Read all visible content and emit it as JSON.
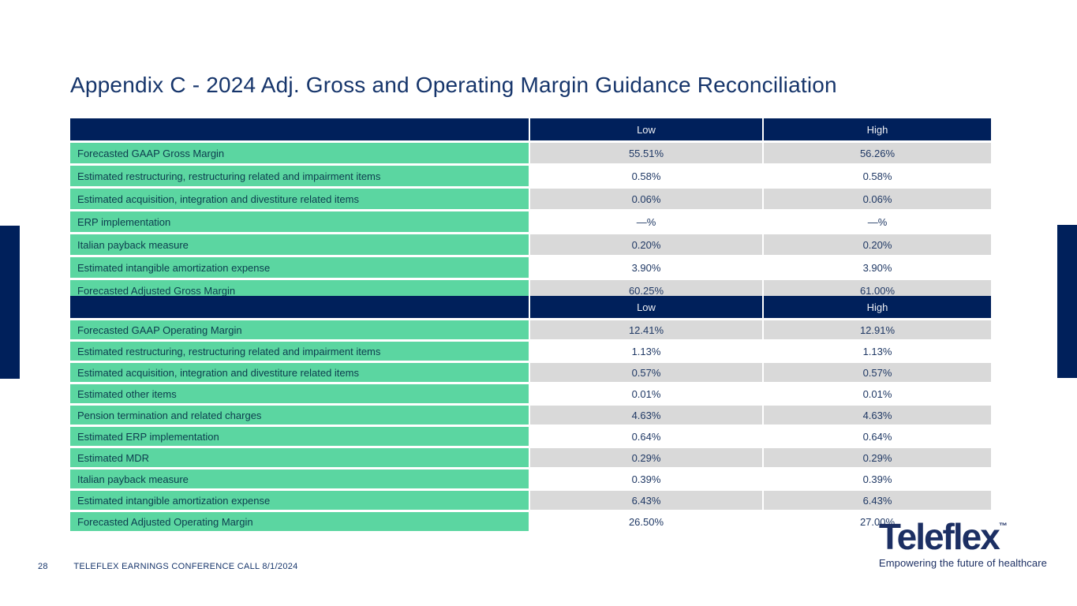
{
  "colors": {
    "navy": "#00205B",
    "title_navy": "#16356B",
    "green": "#5BD6A1",
    "label_text": "#0C3C4E",
    "value_text": "#1F3864",
    "gray_row": "#D9D9D9",
    "header_text": "#EDEFF4",
    "logo_navy": "#1C2F63"
  },
  "title": "Appendix C - 2024 Adj. Gross and Operating Margin Guidance Reconciliation",
  "tables": [
    {
      "name": "gross-margin",
      "columns": {
        "label": "",
        "low": "Low",
        "high": "High"
      },
      "rows": [
        {
          "label": "Forecasted GAAP Gross Margin",
          "low": "55.51%",
          "high": "56.26%"
        },
        {
          "label": "Estimated restructuring, restructuring related and impairment items",
          "low": "0.58%",
          "high": "0.58%"
        },
        {
          "label": "Estimated acquisition, integration and divestiture related items",
          "low": "0.06%",
          "high": "0.06%"
        },
        {
          "label": "ERP implementation",
          "low": "—%",
          "high": "—%"
        },
        {
          "label": "Italian payback measure",
          "low": "0.20%",
          "high": "0.20%"
        },
        {
          "label": "Estimated intangible amortization expense",
          "low": "3.90%",
          "high": "3.90%"
        },
        {
          "label": "Forecasted Adjusted Gross Margin",
          "low": "60.25%",
          "high": "61.00%"
        }
      ]
    },
    {
      "name": "operating-margin",
      "columns": {
        "label": "",
        "low": "Low",
        "high": "High"
      },
      "rows": [
        {
          "label": "Forecasted GAAP Operating Margin",
          "low": "12.41%",
          "high": "12.91%"
        },
        {
          "label": "Estimated restructuring, restructuring related and impairment items",
          "low": "1.13%",
          "high": "1.13%"
        },
        {
          "label": "Estimated acquisition, integration and divestiture related items",
          "low": "0.57%",
          "high": "0.57%"
        },
        {
          "label": "Estimated other items",
          "low": "0.01%",
          "high": "0.01%"
        },
        {
          "label": "Pension termination and related charges",
          "low": "4.63%",
          "high": "4.63%"
        },
        {
          "label": "Estimated ERP implementation",
          "low": "0.64%",
          "high": "0.64%"
        },
        {
          "label": "Estimated MDR",
          "low": "0.29%",
          "high": "0.29%"
        },
        {
          "label": "Italian payback measure",
          "low": "0.39%",
          "high": "0.39%"
        },
        {
          "label": "Estimated intangible amortization expense",
          "low": "6.43%",
          "high": "6.43%"
        },
        {
          "label": "Forecasted Adjusted Operating Margin",
          "low": "26.50%",
          "high": "27.00%"
        }
      ]
    }
  ],
  "footer": {
    "page_number": "28",
    "label": "TELEFLEX EARNINGS CONFERENCE CALL 8/1/2024"
  },
  "logo": {
    "wordmark": "Teleflex",
    "trademark": "™",
    "tagline": "Empowering the future of healthcare"
  }
}
